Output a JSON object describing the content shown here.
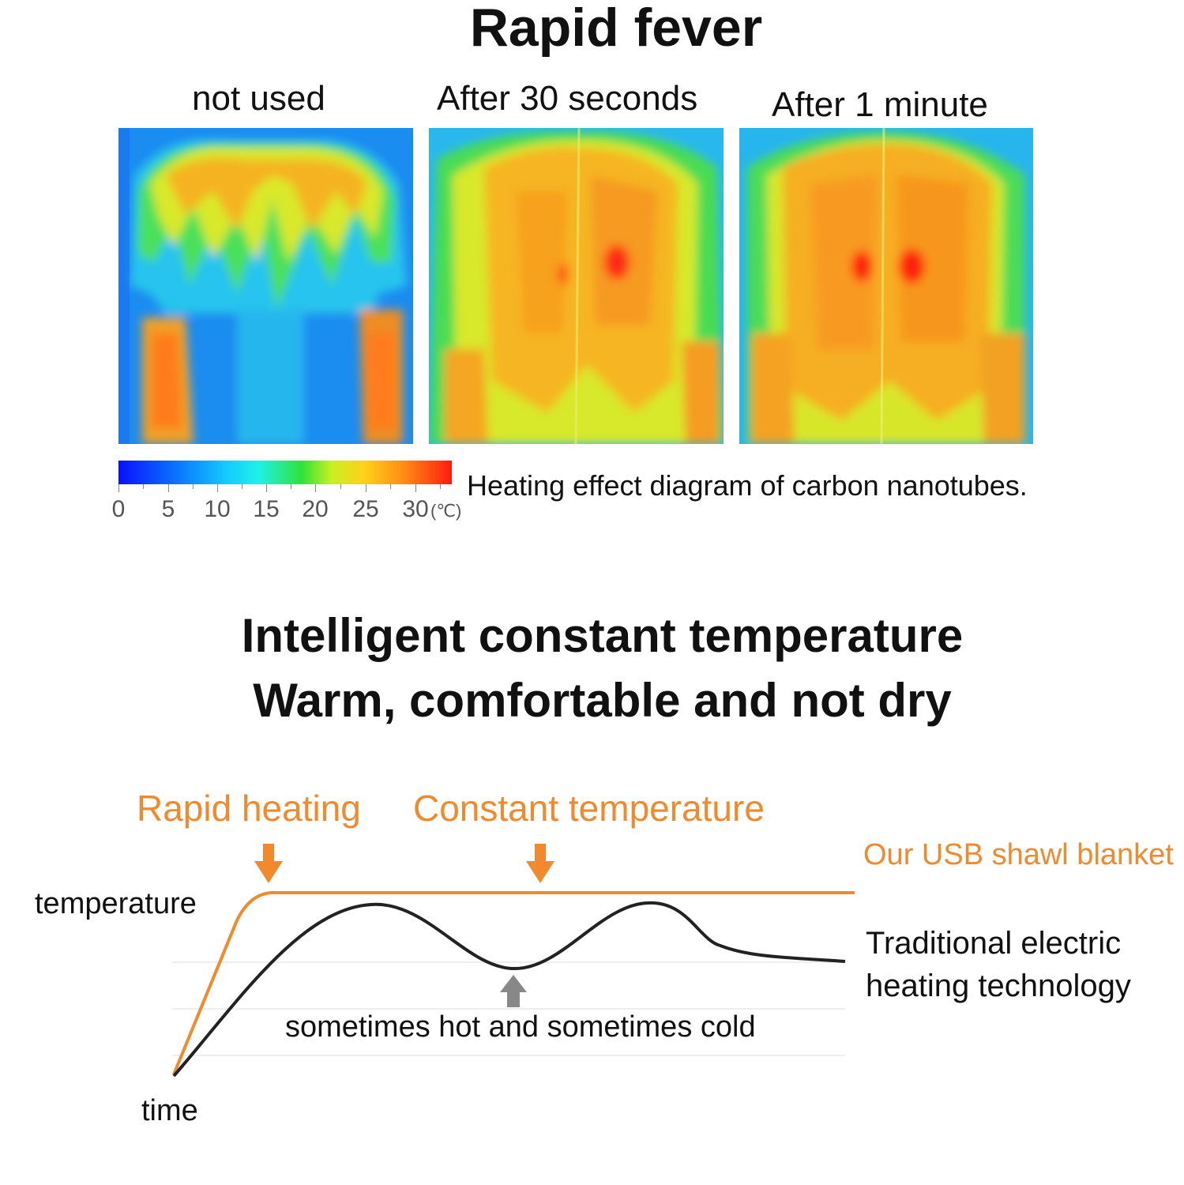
{
  "top": {
    "title": "Rapid fever",
    "panels": [
      {
        "label": "not used"
      },
      {
        "label": "After 30 seconds"
      },
      {
        "label": "After 1 minute"
      }
    ],
    "legend": {
      "ticks": [
        "0",
        "5",
        "10",
        "15",
        "20",
        "25",
        "30"
      ],
      "unit": "(℃)",
      "caption": "Heating effect diagram of carbon nanotubes."
    }
  },
  "bottom": {
    "headline_line1": "Intelligent constant temperature",
    "headline_line2": "Warm, comfortable and not dry",
    "label_rapid_heating": "Rapid heating",
    "label_constant_temperature": "Constant temperature",
    "series_ours": "Our USB shawl blanket",
    "series_traditional_line1": "Traditional electric",
    "series_traditional_line2": "heating technology",
    "annotation": "sometimes hot and sometimes cold",
    "y_axis": "temperature",
    "x_axis": "time",
    "colors": {
      "ours": "#f08a2c",
      "traditional": "#222222",
      "arrow_gray": "#888888"
    }
  }
}
